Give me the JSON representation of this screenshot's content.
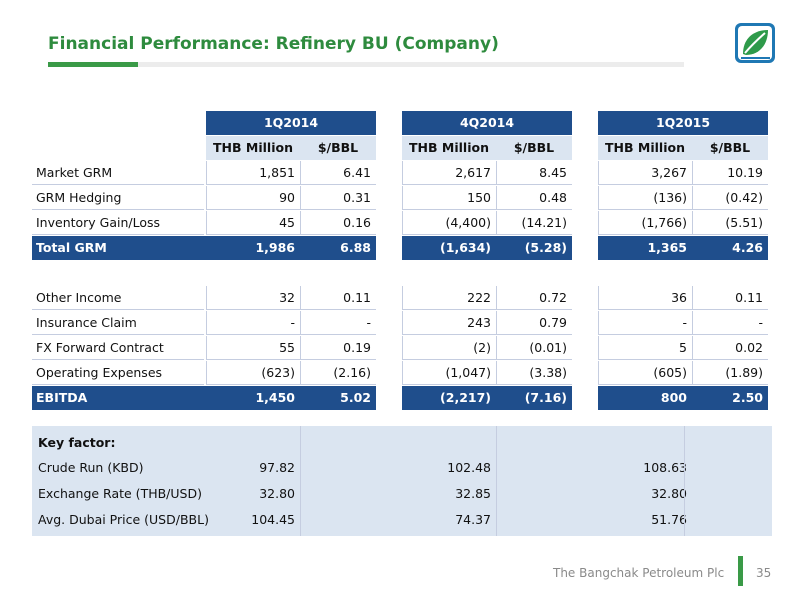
{
  "title": "Financial Performance: Refinery BU (Company)",
  "colors": {
    "brand_green": "#3a9a47",
    "header_blue": "#1f4e8c",
    "light_blue": "#dbe5f1"
  },
  "logo": {
    "icon": "leaf-logo-icon"
  },
  "periods": [
    "1Q2014",
    "4Q2014",
    "1Q2015"
  ],
  "units": {
    "thb": "THB Million",
    "bbl": "$/BBL"
  },
  "rows": [
    {
      "label": "Market GRM",
      "values": [
        "1,851",
        "6.41",
        "2,617",
        "8.45",
        "3,267",
        "10.19"
      ]
    },
    {
      "label": "GRM Hedging",
      "values": [
        "90",
        "0.31",
        "150",
        "0.48",
        "(136)",
        "(0.42)"
      ]
    },
    {
      "label": "Inventory Gain/Loss",
      "values": [
        "45",
        "0.16",
        "(4,400)",
        "(14.21)",
        "(1,766)",
        "(5.51)"
      ]
    }
  ],
  "total_grm": {
    "label": "Total GRM",
    "values": [
      "1,986",
      "6.88",
      "(1,634)",
      "(5.28)",
      "1,365",
      "4.26"
    ]
  },
  "rows2": [
    {
      "label": "Other Income",
      "values": [
        "32",
        "0.11",
        "222",
        "0.72",
        "36",
        "0.11"
      ]
    },
    {
      "label": "Insurance Claim",
      "values": [
        "-",
        "-",
        "243",
        "0.79",
        "-",
        "-"
      ]
    },
    {
      "label": "FX Forward Contract",
      "values": [
        "55",
        "0.19",
        "(2)",
        "(0.01)",
        "5",
        "0.02"
      ]
    },
    {
      "label": "Operating Expenses",
      "values": [
        "(623)",
        "(2.16)",
        "(1,047)",
        "(3.38)",
        "(605)",
        "(1.89)"
      ]
    }
  ],
  "ebitda": {
    "label": "EBITDA",
    "values": [
      "1,450",
      "5.02",
      "(2,217)",
      "(7.16)",
      "800",
      "2.50"
    ]
  },
  "key_factor": {
    "heading": "Key factor:",
    "rows": [
      {
        "label": "Crude Run (KBD)",
        "values": [
          "97.82",
          "102.48",
          "108.63"
        ]
      },
      {
        "label": "Exchange Rate (THB/USD)",
        "values": [
          "32.80",
          "32.85",
          "32.80"
        ]
      },
      {
        "label": "Avg. Dubai Price (USD/BBL)",
        "values": [
          "104.45",
          "74.37",
          "51.76"
        ]
      }
    ]
  },
  "footer": {
    "company": "The Bangchak Petroleum Plc",
    "page": "35"
  }
}
